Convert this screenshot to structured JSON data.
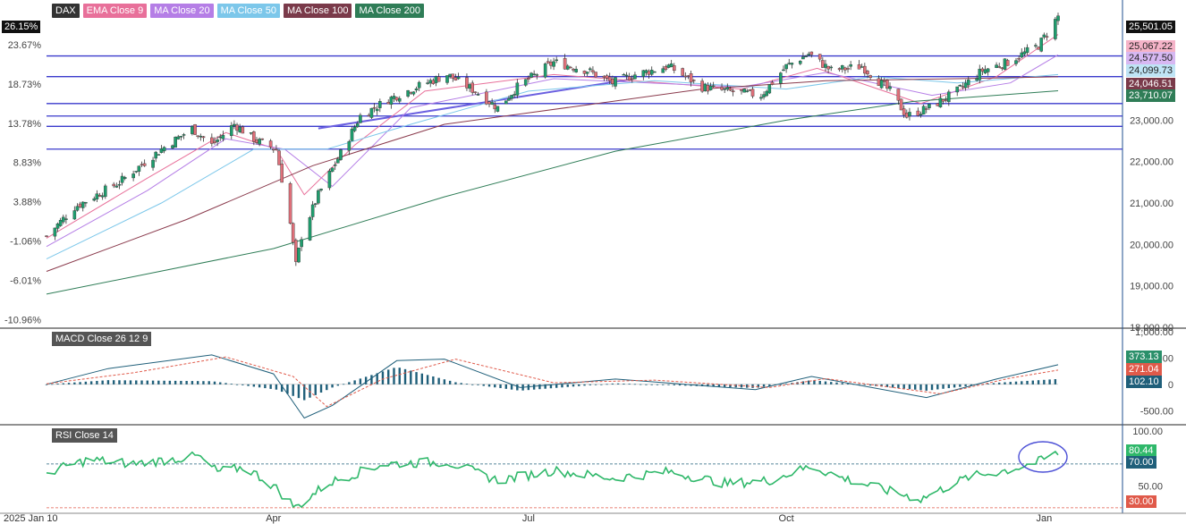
{
  "chart_data": [
    {
      "type": "candlestick",
      "title": "DAX",
      "ticker": "DAX",
      "x_range": [
        "2025-01-10",
        "2026-01-06"
      ],
      "x_tick_labels": [
        "2025 Jan 10",
        "Apr",
        "Jul",
        "Oct",
        "Jan"
      ],
      "ylim": [
        18000,
        25900
      ],
      "y_tick_labels_right": [
        "18,000.00",
        "19,000.00",
        "20,000.00",
        "21,000.00",
        "22,000.00",
        "23,000.00"
      ],
      "y_tick_labels_left": [
        "23.67%",
        "18.73%",
        "13.78%",
        "8.83%",
        "3.88%",
        "-1.06%",
        "-6.01%",
        "-10.96%"
      ],
      "current_change_label": "26.15%",
      "last_price_label": "25,501.05",
      "grid": false,
      "legend": [
        "EMA Close 9",
        "MA Close 20",
        "MA Close 50",
        "MA Close 100",
        "MA Close 200"
      ],
      "price_path": [
        [
          "2025-01-10",
          20200
        ],
        [
          "2025-01-20",
          20900
        ],
        [
          "2025-02-05",
          21500
        ],
        [
          "2025-02-20",
          22300
        ],
        [
          "2025-03-03",
          22800
        ],
        [
          "2025-03-10",
          22400
        ],
        [
          "2025-03-18",
          22900
        ],
        [
          "2025-03-26",
          22500
        ],
        [
          "2025-04-02",
          22300
        ],
        [
          "2025-04-07",
          20500
        ],
        [
          "2025-04-09",
          19500
        ],
        [
          "2025-04-11",
          20200
        ],
        [
          "2025-04-17",
          21200
        ],
        [
          "2025-04-25",
          22200
        ],
        [
          "2025-05-02",
          23100
        ],
        [
          "2025-05-12",
          23500
        ],
        [
          "2025-05-22",
          23800
        ],
        [
          "2025-06-02",
          24100
        ],
        [
          "2025-06-12",
          23700
        ],
        [
          "2025-06-20",
          23300
        ],
        [
          "2025-06-27",
          23800
        ],
        [
          "2025-07-10",
          24400
        ],
        [
          "2025-07-22",
          24200
        ],
        [
          "2025-07-31",
          23900
        ],
        [
          "2025-08-08",
          24100
        ],
        [
          "2025-08-20",
          24300
        ],
        [
          "2025-09-01",
          23800
        ],
        [
          "2025-09-10",
          23700
        ],
        [
          "2025-09-22",
          23600
        ],
        [
          "2025-10-01",
          24300
        ],
        [
          "2025-10-09",
          24600
        ],
        [
          "2025-10-17",
          24200
        ],
        [
          "2025-10-28",
          24300
        ],
        [
          "2025-11-07",
          23700
        ],
        [
          "2025-11-13",
          23100
        ],
        [
          "2025-11-21",
          23300
        ],
        [
          "2025-12-01",
          23700
        ],
        [
          "2025-12-10",
          24200
        ],
        [
          "2025-12-19",
          24400
        ],
        [
          "2025-12-30",
          24800
        ],
        [
          "2026-01-06",
          25501
        ]
      ],
      "series": [
        {
          "name": "EMA Close 9",
          "color": "#e8709a",
          "last_value": 25067.22,
          "points": [
            [
              "2025-01-10",
              20150
            ],
            [
              "2025-02-15",
              21600
            ],
            [
              "2025-03-15",
              22700
            ],
            [
              "2025-04-02",
              22300
            ],
            [
              "2025-04-12",
              21200
            ],
            [
              "2025-04-30",
              22400
            ],
            [
              "2025-05-25",
              23700
            ],
            [
              "2025-07-10",
              24100
            ],
            [
              "2025-09-15",
              23750
            ],
            [
              "2025-10-12",
              24250
            ],
            [
              "2025-11-18",
              23400
            ],
            [
              "2025-12-15",
              24050
            ],
            [
              "2026-01-06",
              25067
            ]
          ]
        },
        {
          "name": "MA Close 20",
          "color": "#b57ee6",
          "last_value": 24577.5,
          "points": [
            [
              "2025-01-10",
              19950
            ],
            [
              "2025-02-15",
              21300
            ],
            [
              "2025-03-15",
              22550
            ],
            [
              "2025-04-05",
              22300
            ],
            [
              "2025-04-22",
              21400
            ],
            [
              "2025-05-20",
              23300
            ],
            [
              "2025-07-10",
              24000
            ],
            [
              "2025-09-15",
              23800
            ],
            [
              "2025-10-15",
              24150
            ],
            [
              "2025-11-22",
              23600
            ],
            [
              "2025-12-20",
              23900
            ],
            [
              "2026-01-06",
              24577
            ]
          ]
        },
        {
          "name": "MA Close 50",
          "color": "#7cc7ea",
          "last_value": 24099.73,
          "points": [
            [
              "2025-01-10",
              19650
            ],
            [
              "2025-02-20",
              21000
            ],
            [
              "2025-03-25",
              22300
            ],
            [
              "2025-04-20",
              22300
            ],
            [
              "2025-05-20",
              22900
            ],
            [
              "2025-07-01",
              23700
            ],
            [
              "2025-08-15",
              23950
            ],
            [
              "2025-10-01",
              23750
            ],
            [
              "2025-11-01",
              24050
            ],
            [
              "2025-12-01",
              23900
            ],
            [
              "2026-01-06",
              24099
            ]
          ]
        },
        {
          "name": "MA Close 100",
          "color": "#8a3a4c",
          "last_value": 24046.51,
          "points": [
            [
              "2025-01-10",
              19350
            ],
            [
              "2025-03-01",
              20600
            ],
            [
              "2025-04-15",
              21900
            ],
            [
              "2025-06-01",
              22900
            ],
            [
              "2025-07-20",
              23350
            ],
            [
              "2025-09-01",
              23750
            ],
            [
              "2025-10-15",
              23950
            ],
            [
              "2025-12-01",
              24000
            ],
            [
              "2026-01-06",
              24046
            ]
          ]
        },
        {
          "name": "MA Close 200",
          "color": "#2f7d57",
          "last_value": 23710.07,
          "points": [
            [
              "2025-01-10",
              18800
            ],
            [
              "2025-04-01",
              19900
            ],
            [
              "2025-06-01",
              21150
            ],
            [
              "2025-08-01",
              22250
            ],
            [
              "2025-10-01",
              23000
            ],
            [
              "2025-11-15",
              23450
            ],
            [
              "2026-01-06",
              23710
            ]
          ]
        }
      ],
      "horizontal_levels": [
        24550,
        24050,
        23400,
        23100,
        22850,
        22300
      ],
      "trendline": [
        [
          "2025-04-17",
          22800
        ],
        [
          "2025-08-07",
          23990
        ]
      ]
    },
    {
      "type": "macd",
      "title": "MACD  Close 26 12 9",
      "ylim": [
        -750,
        1050
      ],
      "y_tick_labels": [
        "1,000.00",
        "500.00",
        "0",
        "-500.00"
      ],
      "last_values": {
        "macd": 373.13,
        "signal": 271.04,
        "histogram": 102.1
      },
      "macd_path": [
        [
          "2025-01-10",
          0
        ],
        [
          "2025-02-01",
          300
        ],
        [
          "2025-03-10",
          560
        ],
        [
          "2025-04-01",
          200
        ],
        [
          "2025-04-12",
          -640
        ],
        [
          "2025-04-22",
          -400
        ],
        [
          "2025-05-15",
          450
        ],
        [
          "2025-06-01",
          480
        ],
        [
          "2025-06-28",
          -60
        ],
        [
          "2025-08-01",
          100
        ],
        [
          "2025-09-20",
          -100
        ],
        [
          "2025-10-10",
          150
        ],
        [
          "2025-11-20",
          -250
        ],
        [
          "2025-12-15",
          100
        ],
        [
          "2026-01-06",
          373
        ]
      ],
      "signal_path": [
        [
          "2025-01-10",
          10
        ],
        [
          "2025-02-10",
          220
        ],
        [
          "2025-03-15",
          520
        ],
        [
          "2025-04-08",
          150
        ],
        [
          "2025-04-20",
          -420
        ],
        [
          "2025-05-10",
          100
        ],
        [
          "2025-06-05",
          480
        ],
        [
          "2025-07-10",
          30
        ],
        [
          "2025-08-15",
          80
        ],
        [
          "2025-09-25",
          -60
        ],
        [
          "2025-10-15",
          110
        ],
        [
          "2025-11-25",
          -180
        ],
        [
          "2025-12-20",
          120
        ],
        [
          "2026-01-06",
          271
        ]
      ],
      "histogram_path": [
        [
          "2025-01-10",
          0
        ],
        [
          "2025-02-01",
          80
        ],
        [
          "2025-03-10",
          60
        ],
        [
          "2025-04-02",
          -100
        ],
        [
          "2025-04-12",
          -300
        ],
        [
          "2025-04-22",
          -60
        ],
        [
          "2025-05-15",
          330
        ],
        [
          "2025-06-05",
          40
        ],
        [
          "2025-06-28",
          -120
        ],
        [
          "2025-08-01",
          20
        ],
        [
          "2025-09-20",
          -70
        ],
        [
          "2025-10-10",
          80
        ],
        [
          "2025-11-20",
          -120
        ],
        [
          "2025-12-15",
          30
        ],
        [
          "2026-01-06",
          102
        ]
      ]
    },
    {
      "type": "line",
      "title": "RSI  Close 14",
      "ylim": [
        25,
        105
      ],
      "y_tick_labels": [
        "100.00",
        "50.00"
      ],
      "levels": [
        70,
        30
      ],
      "last_values": {
        "rsi": 80.44,
        "upper": 70.0,
        "lower": 30.0
      },
      "rsi_path": [
        [
          "2025-01-10",
          62
        ],
        [
          "2025-01-25",
          74
        ],
        [
          "2025-02-10",
          70
        ],
        [
          "2025-03-05",
          77
        ],
        [
          "2025-03-12",
          63
        ],
        [
          "2025-03-22",
          67
        ],
        [
          "2025-04-01",
          50
        ],
        [
          "2025-04-09",
          30
        ],
        [
          "2025-04-20",
          52
        ],
        [
          "2025-05-10",
          70
        ],
        [
          "2025-06-02",
          72
        ],
        [
          "2025-06-20",
          55
        ],
        [
          "2025-07-10",
          64
        ],
        [
          "2025-07-31",
          57
        ],
        [
          "2025-08-20",
          63
        ],
        [
          "2025-09-10",
          52
        ],
        [
          "2025-09-25",
          55
        ],
        [
          "2025-10-10",
          68
        ],
        [
          "2025-10-20",
          58
        ],
        [
          "2025-11-07",
          45
        ],
        [
          "2025-11-18",
          38
        ],
        [
          "2025-12-05",
          58
        ],
        [
          "2025-12-20",
          65
        ],
        [
          "2025-12-30",
          72
        ],
        [
          "2026-01-06",
          80
        ]
      ]
    }
  ],
  "legend_items": [
    {
      "label": "DAX",
      "color": "#222222"
    },
    {
      "label": "EMA  Close 9",
      "color": "#e8709a"
    },
    {
      "label": "MA  Close 20",
      "color": "#b57ee6"
    },
    {
      "label": "MA  Close 50",
      "color": "#7cc7ea"
    },
    {
      "label": "MA  Close 100",
      "color": "#7a3a4a"
    },
    {
      "label": "MA  Close 200",
      "color": "#2f7d57"
    }
  ],
  "macd_label": "MACD  Close 26 12 9",
  "rsi_label": "RSI  Close 14",
  "right_tags": [
    {
      "text": "25,501.05",
      "bg": "#111111",
      "fg": "#ffffff"
    },
    {
      "text": "25,067.22",
      "bg": "#f5b3c8",
      "fg": "#222222"
    },
    {
      "text": "24,577.50",
      "bg": "#d7b8f2",
      "fg": "#222222"
    },
    {
      "text": "24,099.73",
      "bg": "#bfe4f5",
      "fg": "#222222"
    },
    {
      "text": "24,046.51",
      "bg": "#7a3a4a",
      "fg": "#ffffff"
    },
    {
      "text": "23,710.07",
      "bg": "#2f7d57",
      "fg": "#ffffff"
    },
    {
      "text": "373.13",
      "bg": "#2a8f6a",
      "fg": "#ffffff"
    },
    {
      "text": "271.04",
      "bg": "#e05a4a",
      "fg": "#ffffff"
    },
    {
      "text": "102.10",
      "bg": "#1f5f7a",
      "fg": "#ffffff"
    },
    {
      "text": "80.44",
      "bg": "#2fb86a",
      "fg": "#ffffff"
    },
    {
      "text": "70.00",
      "bg": "#1f5f7a",
      "fg": "#ffffff"
    },
    {
      "text": "30.00",
      "bg": "#e05a4a",
      "fg": "#ffffff"
    }
  ],
  "left_tag": {
    "text": "26.15%",
    "bg": "#111111",
    "fg": "#ffffff"
  },
  "colors": {
    "up": "#1f9e6e",
    "down": "#e0707a",
    "level_line": "#3a3acc",
    "trend_line": "#6a5fe0",
    "axis": "#1f4f8f"
  }
}
